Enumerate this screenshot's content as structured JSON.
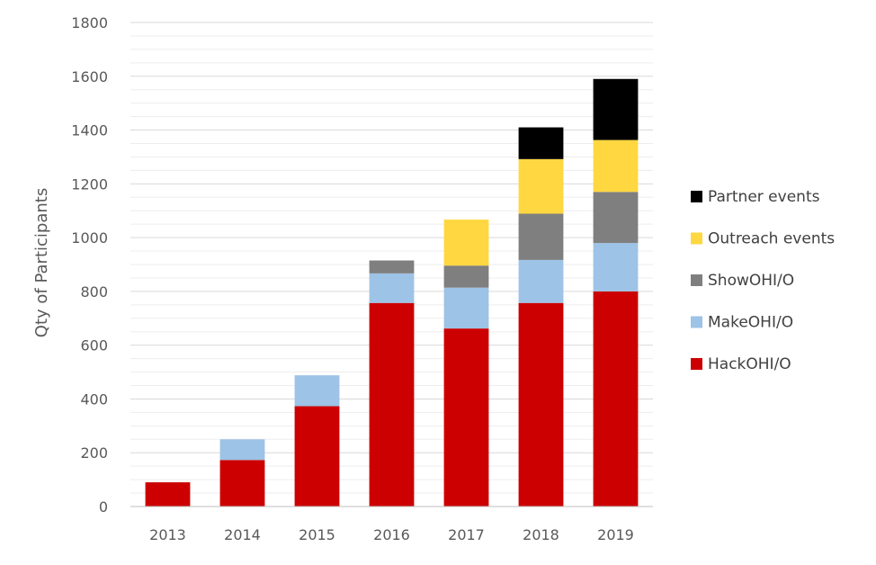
{
  "chart_data": {
    "type": "bar",
    "stacked": true,
    "categories": [
      "2013",
      "2014",
      "2015",
      "2016",
      "2017",
      "2018",
      "2019"
    ],
    "series": [
      {
        "name": "HackOHI/O",
        "color": "#CC0000",
        "values": [
          90,
          173,
          373,
          757,
          662,
          757,
          800
        ]
      },
      {
        "name": "MakeOHI/O",
        "color": "#9DC3E6",
        "values": [
          0,
          77,
          115,
          110,
          152,
          160,
          180
        ]
      },
      {
        "name": "ShowOHI/O",
        "color": "#7F7F7F",
        "values": [
          0,
          0,
          0,
          48,
          82,
          172,
          190
        ]
      },
      {
        "name": "Outreach events",
        "color": "#FFD740",
        "values": [
          0,
          0,
          0,
          0,
          171,
          203,
          193
        ]
      },
      {
        "name": "Partner events",
        "color": "#000000",
        "values": [
          0,
          0,
          0,
          0,
          0,
          118,
          227
        ]
      }
    ],
    "title": "",
    "xlabel": "",
    "ylabel": "Qty of Participants",
    "ylim": [
      0,
      1800
    ],
    "yticks": [
      0,
      200,
      400,
      600,
      800,
      1000,
      1200,
      1400,
      1600,
      1800
    ],
    "grid": true,
    "legend_position": "right",
    "legend_order": [
      "Partner events",
      "Outreach events",
      "ShowOHI/O",
      "MakeOHI/O",
      "HackOHI/O"
    ]
  }
}
